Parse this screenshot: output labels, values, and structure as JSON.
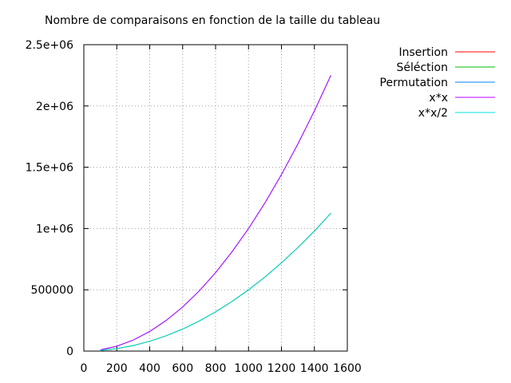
{
  "chart_data": {
    "type": "line",
    "title": "Nombre de comparaisons en fonction de la taille du tableau",
    "xlabel": "",
    "ylabel": "",
    "xlim": [
      0,
      1600
    ],
    "ylim": [
      0,
      2500000
    ],
    "xticks": [
      0,
      200,
      400,
      600,
      800,
      1000,
      1200,
      1400,
      1600
    ],
    "xtick_labels": [
      "0",
      "200",
      "400",
      "600",
      "800",
      "1000",
      "1200",
      "1400",
      "1600"
    ],
    "yticks": [
      0,
      500000,
      1000000,
      1500000,
      2000000,
      2500000
    ],
    "ytick_labels": [
      "0",
      "500000",
      "1e+06",
      "1.5e+06",
      "2e+06",
      "2.5e+06"
    ],
    "grid": true,
    "legend_position": "outside-top-right",
    "series": [
      {
        "name": "Insertion",
        "color": "#ff0000",
        "formula": "x*x/2",
        "x": [
          100,
          200,
          300,
          400,
          500,
          600,
          700,
          800,
          900,
          1000,
          1100,
          1200,
          1300,
          1400,
          1500
        ],
        "y": [
          5000,
          20000,
          45000,
          80000,
          125000,
          180000,
          245000,
          320000,
          405000,
          500000,
          605000,
          720000,
          845000,
          980000,
          1125000
        ]
      },
      {
        "name": "Séléction",
        "color": "#00c000",
        "formula": "x*x/2",
        "x": [
          100,
          200,
          300,
          400,
          500,
          600,
          700,
          800,
          900,
          1000,
          1100,
          1200,
          1300,
          1400,
          1500
        ],
        "y": [
          5000,
          20000,
          45000,
          80000,
          125000,
          180000,
          245000,
          320000,
          405000,
          500000,
          605000,
          720000,
          845000,
          980000,
          1125000
        ]
      },
      {
        "name": "Permutation",
        "color": "#0080ff",
        "formula": "x*x",
        "x": [
          100,
          200,
          300,
          400,
          500,
          600,
          700,
          800,
          900,
          1000,
          1100,
          1200,
          1300,
          1400,
          1500
        ],
        "y": [
          10000,
          40000,
          90000,
          160000,
          250000,
          360000,
          490000,
          640000,
          810000,
          1000000,
          1210000,
          1440000,
          1690000,
          1960000,
          2250000
        ]
      },
      {
        "name": "x*x",
        "color": "#c000ff",
        "formula": "x*x",
        "x": [
          100,
          200,
          300,
          400,
          500,
          600,
          700,
          800,
          900,
          1000,
          1100,
          1200,
          1300,
          1400,
          1500
        ],
        "y": [
          10000,
          40000,
          90000,
          160000,
          250000,
          360000,
          490000,
          640000,
          810000,
          1000000,
          1210000,
          1440000,
          1690000,
          1960000,
          2250000
        ]
      },
      {
        "name": "x*x/2",
        "color": "#00e0e0",
        "formula": "x*x/2",
        "x": [
          100,
          200,
          300,
          400,
          500,
          600,
          700,
          800,
          900,
          1000,
          1100,
          1200,
          1300,
          1400,
          1500
        ],
        "y": [
          5000,
          20000,
          45000,
          80000,
          125000,
          180000,
          245000,
          320000,
          405000,
          500000,
          605000,
          720000,
          845000,
          980000,
          1125000
        ]
      }
    ]
  }
}
